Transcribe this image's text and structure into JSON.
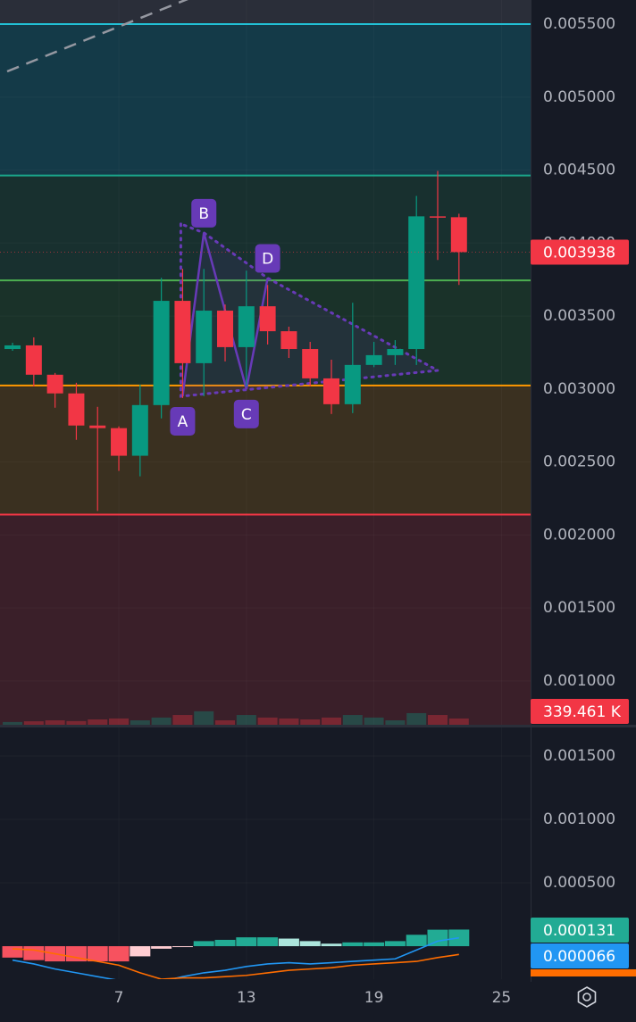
{
  "chart_data": [
    {
      "type": "candlestick",
      "x": [
        2,
        3,
        4,
        5,
        6,
        7,
        8,
        9,
        10,
        11,
        12,
        13,
        14,
        15,
        16,
        17,
        18,
        19,
        20,
        21,
        22,
        23
      ],
      "open": [
        0.003274,
        0.003299,
        0.003098,
        0.00297,
        0.00275,
        0.002732,
        0.002543,
        0.00289,
        0.003604,
        0.003177,
        0.003537,
        0.003287,
        0.003567,
        0.003396,
        0.003274,
        0.003073,
        0.002896,
        0.003165,
        0.003232,
        0.003274,
        0.004183,
        0.004177
      ],
      "high": [
        0.003317,
        0.003354,
        0.00311,
        0.003043,
        0.002878,
        0.002744,
        0.00303,
        0.003762,
        0.003823,
        0.003823,
        0.003579,
        0.003811,
        0.003713,
        0.003427,
        0.003323,
        0.003201,
        0.003591,
        0.003323,
        0.003335,
        0.004323,
        0.004494,
        0.004201
      ],
      "low": [
        0.003262,
        0.003018,
        0.002872,
        0.002652,
        0.002165,
        0.002439,
        0.002402,
        0.002799,
        0.002939,
        0.002951,
        0.003189,
        0.003018,
        0.003305,
        0.003213,
        0.003018,
        0.002829,
        0.002835,
        0.00315,
        0.003165,
        0.003165,
        0.003884,
        0.003713
      ],
      "close": [
        0.003299,
        0.003098,
        0.00297,
        0.00275,
        0.002732,
        0.002543,
        0.00289,
        0.003604,
        0.003177,
        0.003537,
        0.003287,
        0.003567,
        0.003396,
        0.003274,
        0.003073,
        0.002896,
        0.003165,
        0.003232,
        0.003274,
        0.004183,
        0.004177,
        0.003938
      ],
      "up_color": "#089981",
      "down_color": "#f23645",
      "volume": [
        150,
        190,
        240,
        200,
        290,
        340,
        240,
        390,
        530,
        730,
        240,
        530,
        390,
        340,
        290,
        390,
        530,
        390,
        240,
        630,
        530,
        339.461
      ],
      "volume_label": "339.461 K",
      "vlim": [
        0,
        5800
      ],
      "xlim": [
        1.41,
        26.37
      ],
      "ylim": [
        0.0007,
        0.005665
      ],
      "yticks": [
        {
          "value": 0.0055,
          "label": "0.005500"
        },
        {
          "value": 0.005,
          "label": "0.005000"
        },
        {
          "value": 0.0045,
          "label": "0.004500"
        },
        {
          "value": 0.004,
          "label": "0.004000"
        },
        {
          "value": 0.0035,
          "label": "0.003500"
        },
        {
          "value": 0.003,
          "label": "0.003000"
        },
        {
          "value": 0.0025,
          "label": "0.002500"
        },
        {
          "value": 0.002,
          "label": "0.002000"
        },
        {
          "value": 0.0015,
          "label": "0.001500"
        },
        {
          "value": 0.001,
          "label": "0.001000"
        }
      ],
      "levels": [
        {
          "value": 0.0055,
          "color": "#22c1d6",
          "fill": "#143a48"
        },
        {
          "value": 0.004463,
          "color": "#1aa58a",
          "fill": "#18302f"
        },
        {
          "value": 0.003744,
          "color": "#4caf50",
          "fill": "#1a3229"
        },
        {
          "value": 0.003024,
          "color": "#ff9800",
          "fill": "#3a3020"
        },
        {
          "value": 0.00214,
          "color": "#f23645",
          "fill": "#3a1f29"
        }
      ],
      "pattern": {
        "color": "#673ab7",
        "points": [
          {
            "label": "A",
            "x": 10,
            "price": 0.00295
          },
          {
            "label": "B",
            "x": 11,
            "price": 0.00407
          },
          {
            "label": "C",
            "x": 13,
            "price": 0.003
          },
          {
            "label": "D",
            "x": 14,
            "price": 0.00376
          }
        ]
      }
    },
    {
      "type": "macd",
      "ylim": [
        -0.00026,
        0.001725
      ],
      "yticks": [
        {
          "value": 0.0015,
          "label": "0.001500"
        },
        {
          "value": 0.001,
          "label": "0.001000"
        },
        {
          "value": 0.0005,
          "label": "0.000500"
        }
      ],
      "xticks": [
        7,
        13,
        19,
        25
      ],
      "histogram": {
        "values": [
          -9e-05,
          -0.00011,
          -0.00012,
          -0.00012,
          -0.00012,
          -0.00012,
          -8e-05,
          -2e-05,
          -5e-06,
          4e-05,
          5e-05,
          7e-05,
          7e-05,
          6e-05,
          4e-05,
          2e-05,
          3e-05,
          3e-05,
          4e-05,
          9e-05,
          0.00013,
          0.000131
        ],
        "colors": [
          "#f7525f",
          "#f7525f",
          "#f7525f",
          "#f7525f",
          "#f7525f",
          "#f7525f",
          "#ffcdd2",
          "#ffcdd2",
          "#ffcdd2",
          "#22ab94",
          "#22ab94",
          "#22ab94",
          "#22ab94",
          "#ace5dc",
          "#ace5dc",
          "#ace5dc",
          "#22ab94",
          "#22ab94",
          "#22ab94",
          "#22ab94",
          "#22ab94",
          "#22ab94"
        ]
      },
      "macd": {
        "color": "#2196f3",
        "values": [
          -0.00011,
          -0.00014,
          -0.00018,
          -0.00021,
          -0.00024,
          -0.00027,
          -0.00029,
          -0.00028,
          -0.00024,
          -0.00021,
          -0.00019,
          -0.00016,
          -0.00014,
          -0.00013,
          -0.00014,
          -0.00013,
          -0.00012,
          -0.00011,
          -0.0001,
          -3e-05,
          4e-05,
          6.6e-05
        ]
      },
      "signal": {
        "color": "#ff6d00",
        "values": [
          -2e-05,
          -3e-05,
          -6e-05,
          -9e-05,
          -0.00012,
          -0.00015,
          -0.00021,
          -0.00026,
          -0.00025,
          -0.00025,
          -0.00024,
          -0.00023,
          -0.00021,
          -0.00019,
          -0.00018,
          -0.00017,
          -0.00015,
          -0.00014,
          -0.00013,
          -0.00012,
          -9e-05,
          -6.5e-05
        ]
      }
    }
  ]
}
